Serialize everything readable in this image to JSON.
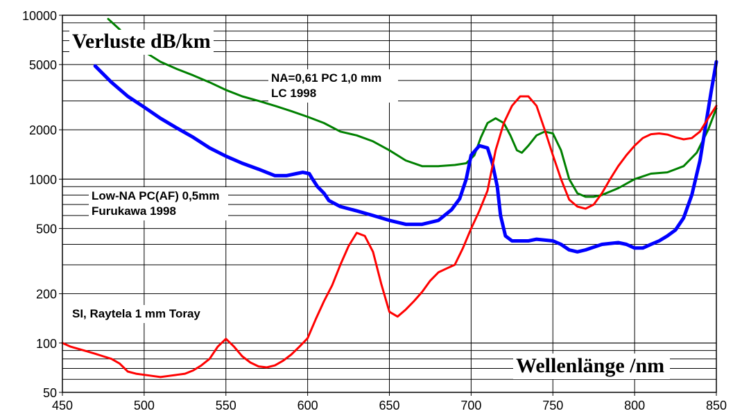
{
  "chart_data": {
    "type": "line",
    "title": "",
    "ylabel": "Verluste  dB/km",
    "xlabel": "Wellenlänge  /nm",
    "xlim": [
      450,
      850
    ],
    "ylim": [
      50,
      10000
    ],
    "yscale": "log",
    "grid": true,
    "x_ticks": [
      "450",
      "500",
      "550",
      "600",
      "650",
      "700",
      "750",
      "800",
      "850"
    ],
    "y_ticks": [
      "50",
      "100",
      "200",
      "500",
      "1000",
      "2000",
      "5000",
      "10000"
    ],
    "annotations": [
      {
        "line1": "NA=0,61 PC 1,0 mm",
        "line2": "LC 1998",
        "color": "#008000"
      },
      {
        "line1": "Low-NA PC(AF) 0,5mm",
        "line2": "Furukawa 1998",
        "color": "#0000ff"
      },
      {
        "line1": "SI, Raytela 1 mm Toray",
        "line2": "",
        "color": "#ff0000"
      }
    ],
    "series": [
      {
        "color": "#008000",
        "width": 3,
        "points": [
          [
            478,
            9500
          ],
          [
            485,
            8200
          ],
          [
            490,
            7200
          ],
          [
            500,
            6000
          ],
          [
            510,
            5200
          ],
          [
            520,
            4700
          ],
          [
            530,
            4300
          ],
          [
            540,
            3900
          ],
          [
            550,
            3500
          ],
          [
            560,
            3200
          ],
          [
            570,
            3000
          ],
          [
            580,
            2800
          ],
          [
            590,
            2600
          ],
          [
            600,
            2400
          ],
          [
            610,
            2200
          ],
          [
            620,
            1950
          ],
          [
            630,
            1850
          ],
          [
            640,
            1700
          ],
          [
            650,
            1500
          ],
          [
            660,
            1300
          ],
          [
            670,
            1200
          ],
          [
            680,
            1200
          ],
          [
            690,
            1220
          ],
          [
            697,
            1250
          ],
          [
            702,
            1400
          ],
          [
            706,
            1800
          ],
          [
            710,
            2200
          ],
          [
            715,
            2350
          ],
          [
            720,
            2200
          ],
          [
            724,
            1850
          ],
          [
            728,
            1500
          ],
          [
            731,
            1450
          ],
          [
            735,
            1600
          ],
          [
            740,
            1850
          ],
          [
            745,
            1950
          ],
          [
            750,
            1900
          ],
          [
            755,
            1500
          ],
          [
            760,
            1000
          ],
          [
            765,
            820
          ],
          [
            770,
            780
          ],
          [
            775,
            780
          ],
          [
            780,
            800
          ],
          [
            790,
            880
          ],
          [
            800,
            1000
          ],
          [
            810,
            1080
          ],
          [
            820,
            1100
          ],
          [
            830,
            1200
          ],
          [
            838,
            1450
          ],
          [
            845,
            2000
          ],
          [
            850,
            2700
          ]
        ]
      },
      {
        "color": "#0000ff",
        "width": 5,
        "points": [
          [
            470,
            4900
          ],
          [
            480,
            3900
          ],
          [
            490,
            3200
          ],
          [
            500,
            2750
          ],
          [
            510,
            2350
          ],
          [
            520,
            2050
          ],
          [
            530,
            1800
          ],
          [
            540,
            1550
          ],
          [
            550,
            1380
          ],
          [
            560,
            1250
          ],
          [
            570,
            1150
          ],
          [
            580,
            1050
          ],
          [
            587,
            1050
          ],
          [
            593,
            1080
          ],
          [
            597,
            1100
          ],
          [
            601,
            1080
          ],
          [
            603,
            1000
          ],
          [
            606,
            900
          ],
          [
            610,
            820
          ],
          [
            613,
            740
          ],
          [
            620,
            680
          ],
          [
            630,
            640
          ],
          [
            640,
            600
          ],
          [
            650,
            560
          ],
          [
            660,
            530
          ],
          [
            670,
            530
          ],
          [
            680,
            560
          ],
          [
            688,
            650
          ],
          [
            693,
            760
          ],
          [
            697,
            1000
          ],
          [
            700,
            1400
          ],
          [
            705,
            1600
          ],
          [
            710,
            1550
          ],
          [
            713,
            1250
          ],
          [
            716,
            900
          ],
          [
            718,
            600
          ],
          [
            721,
            450
          ],
          [
            725,
            420
          ],
          [
            730,
            420
          ],
          [
            735,
            420
          ],
          [
            740,
            430
          ],
          [
            750,
            420
          ],
          [
            755,
            400
          ],
          [
            760,
            370
          ],
          [
            765,
            360
          ],
          [
            770,
            370
          ],
          [
            780,
            400
          ],
          [
            790,
            410
          ],
          [
            795,
            400
          ],
          [
            800,
            380
          ],
          [
            805,
            380
          ],
          [
            810,
            400
          ],
          [
            815,
            420
          ],
          [
            820,
            450
          ],
          [
            825,
            490
          ],
          [
            830,
            580
          ],
          [
            835,
            800
          ],
          [
            840,
            1300
          ],
          [
            844,
            2300
          ],
          [
            847,
            3500
          ],
          [
            850,
            5200
          ]
        ]
      },
      {
        "color": "#ff0000",
        "width": 3,
        "points": [
          [
            450,
            100
          ],
          [
            455,
            95
          ],
          [
            460,
            92
          ],
          [
            465,
            89
          ],
          [
            470,
            86
          ],
          [
            475,
            83
          ],
          [
            480,
            80
          ],
          [
            485,
            75
          ],
          [
            490,
            67
          ],
          [
            495,
            65
          ],
          [
            500,
            64
          ],
          [
            505,
            63
          ],
          [
            510,
            62
          ],
          [
            515,
            63
          ],
          [
            520,
            64
          ],
          [
            525,
            65
          ],
          [
            530,
            68
          ],
          [
            535,
            73
          ],
          [
            540,
            80
          ],
          [
            545,
            95
          ],
          [
            550,
            106
          ],
          [
            555,
            95
          ],
          [
            560,
            83
          ],
          [
            565,
            76
          ],
          [
            570,
            72
          ],
          [
            575,
            71
          ],
          [
            580,
            73
          ],
          [
            585,
            78
          ],
          [
            590,
            85
          ],
          [
            595,
            95
          ],
          [
            600,
            107
          ],
          [
            605,
            140
          ],
          [
            610,
            180
          ],
          [
            615,
            225
          ],
          [
            620,
            300
          ],
          [
            625,
            390
          ],
          [
            630,
            470
          ],
          [
            635,
            450
          ],
          [
            640,
            360
          ],
          [
            645,
            230
          ],
          [
            650,
            155
          ],
          [
            655,
            145
          ],
          [
            660,
            160
          ],
          [
            665,
            180
          ],
          [
            670,
            205
          ],
          [
            675,
            240
          ],
          [
            680,
            270
          ],
          [
            685,
            285
          ],
          [
            690,
            300
          ],
          [
            695,
            380
          ],
          [
            700,
            500
          ],
          [
            705,
            640
          ],
          [
            710,
            850
          ],
          [
            715,
            1500
          ],
          [
            720,
            2200
          ],
          [
            725,
            2800
          ],
          [
            730,
            3200
          ],
          [
            735,
            3200
          ],
          [
            740,
            2800
          ],
          [
            745,
            2000
          ],
          [
            750,
            1400
          ],
          [
            755,
            1000
          ],
          [
            760,
            750
          ],
          [
            765,
            680
          ],
          [
            770,
            660
          ],
          [
            775,
            700
          ],
          [
            780,
            820
          ],
          [
            785,
            1000
          ],
          [
            790,
            1200
          ],
          [
            795,
            1400
          ],
          [
            800,
            1600
          ],
          [
            805,
            1780
          ],
          [
            810,
            1880
          ],
          [
            815,
            1900
          ],
          [
            820,
            1870
          ],
          [
            825,
            1800
          ],
          [
            830,
            1750
          ],
          [
            835,
            1780
          ],
          [
            840,
            1950
          ],
          [
            845,
            2350
          ],
          [
            850,
            2800
          ]
        ]
      }
    ]
  }
}
